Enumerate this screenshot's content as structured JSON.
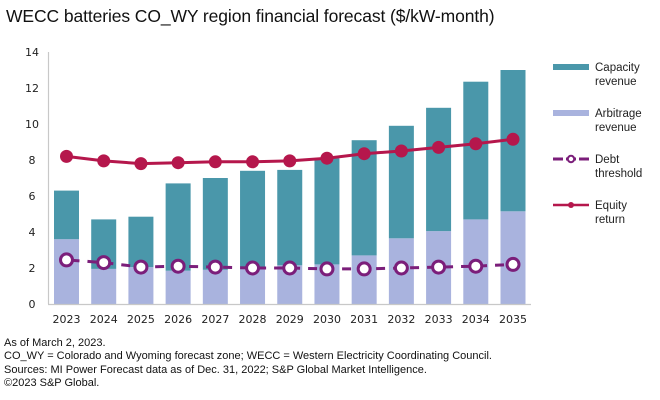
{
  "title": "WECC batteries CO_WY region financial forecast ($/kW-month)",
  "colors": {
    "capacity": "#4A97AA",
    "arbitrage": "#A9B3DE",
    "debt": "#7B1E7A",
    "equity": "#B5174C",
    "axis": "#C8C8C8"
  },
  "legend": [
    {
      "key": "capacity",
      "label": "Capacity revenue"
    },
    {
      "key": "arbitrage",
      "label": "Arbitrage revenue"
    },
    {
      "key": "debt",
      "label": "Debt threshold"
    },
    {
      "key": "equity",
      "label": "Equity return"
    }
  ],
  "chart_data": {
    "type": "bar",
    "title": "WECC batteries CO_WY region financial forecast ($/kW-month)",
    "xlabel": "",
    "ylabel": "",
    "ylim": [
      0,
      14
    ],
    "yticks": [
      0,
      2,
      4,
      6,
      8,
      10,
      12,
      14
    ],
    "grid": false,
    "legend_position": "right",
    "categories": [
      "2023",
      "2024",
      "2025",
      "2026",
      "2027",
      "2028",
      "2029",
      "2030",
      "2031",
      "2032",
      "2033",
      "2034",
      "2035"
    ],
    "series": [
      {
        "name": "Arbitrage revenue",
        "type": "bar-stacked",
        "values": [
          3.6,
          1.95,
          2.05,
          1.85,
          1.9,
          2.05,
          2.15,
          2.2,
          2.7,
          3.65,
          4.05,
          4.7,
          5.15
        ]
      },
      {
        "name": "Capacity revenue",
        "type": "bar-stacked",
        "values": [
          2.7,
          2.75,
          2.8,
          4.85,
          5.1,
          5.35,
          5.3,
          5.9,
          6.4,
          6.25,
          6.85,
          7.65,
          7.85
        ]
      },
      {
        "name": "Debt threshold",
        "type": "line-dashed",
        "values": [
          2.45,
          2.3,
          2.05,
          2.1,
          2.05,
          2.0,
          2.0,
          1.95,
          1.95,
          2.0,
          2.05,
          2.1,
          2.2
        ]
      },
      {
        "name": "Equity return",
        "type": "line",
        "values": [
          8.2,
          7.95,
          7.8,
          7.85,
          7.9,
          7.9,
          7.95,
          8.1,
          8.35,
          8.5,
          8.7,
          8.9,
          9.15
        ]
      }
    ],
    "bar_totals": [
      6.3,
      4.7,
      4.85,
      6.7,
      7.0,
      7.4,
      7.45,
      8.1,
      9.1,
      9.9,
      10.9,
      12.35,
      13.0
    ]
  },
  "footer": [
    "As of March 2, 2023.",
    "CO_WY = Colorado and Wyoming forecast zone; WECC = Western Electricity Coordinating Council.",
    "Sources: MI Power Forecast data as of Dec. 31, 2022; S&P Global Market Intelligence.",
    "©2023 S&P Global."
  ]
}
